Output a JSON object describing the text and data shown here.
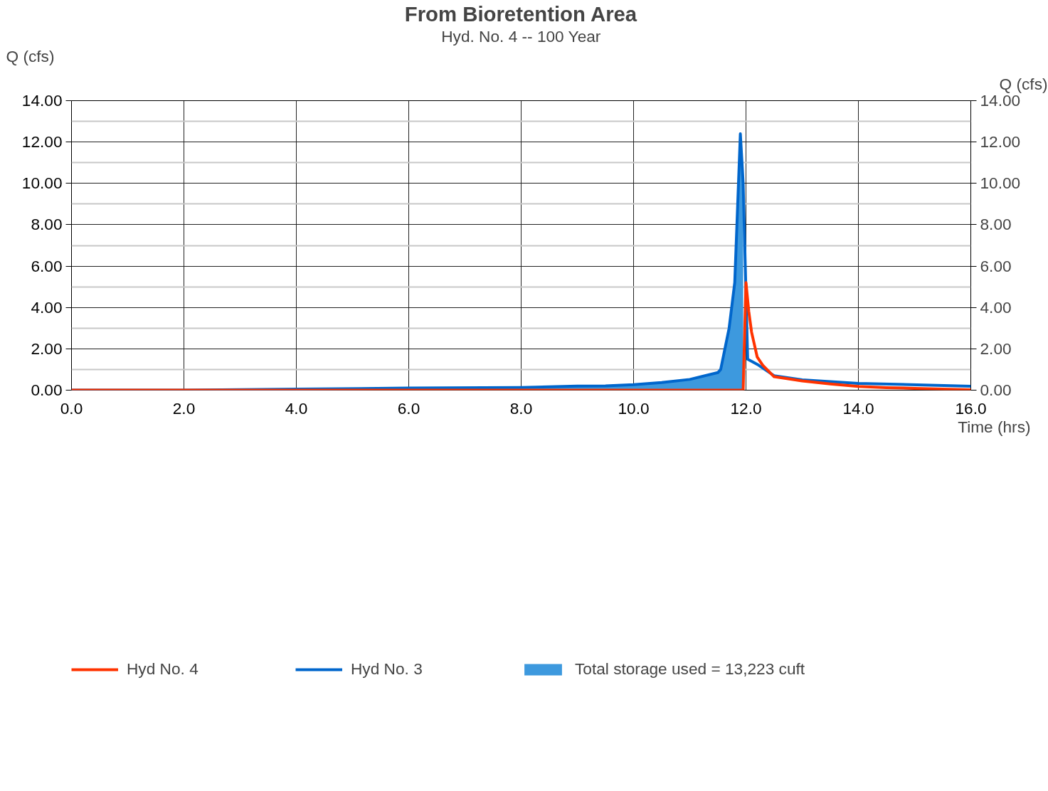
{
  "chart_data": {
    "type": "line",
    "title": "From Bioretention Area",
    "subtitle": "Hyd. No. 4 -- 100 Year",
    "ylabel": "Q (cfs)",
    "y2label": "Q (cfs)",
    "xlabel": "Time (hrs)",
    "series": [
      {
        "name": "Hyd No. 4",
        "color": "#ff3300",
        "x": [
          0,
          2,
          4,
          6,
          8,
          10,
          11,
          11.5,
          11.95,
          12.0,
          12.05,
          12.1,
          12.2,
          12.3,
          12.5,
          13.0,
          13.5,
          14.0,
          14.5,
          15.0,
          16.0
        ],
        "values": [
          0,
          0,
          0,
          0,
          0,
          0,
          0,
          0,
          0,
          5.2,
          3.8,
          2.8,
          1.6,
          1.2,
          0.65,
          0.45,
          0.3,
          0.18,
          0.12,
          0.09,
          0.02
        ]
      },
      {
        "name": "Hyd No. 3",
        "color": "#0066cc",
        "x": [
          0,
          2,
          4,
          6,
          8,
          9,
          9.5,
          10,
          10.5,
          11,
          11.5,
          11.55,
          11.7,
          11.8,
          11.9,
          11.95,
          12.03,
          12.2,
          12.5,
          13.0,
          14.0,
          16.0
        ],
        "values": [
          0,
          0,
          0.05,
          0.1,
          0.13,
          0.2,
          0.21,
          0.27,
          0.37,
          0.52,
          0.85,
          1.0,
          3.0,
          5.2,
          12.4,
          10.0,
          1.5,
          1.25,
          0.7,
          0.5,
          0.33,
          0.19
        ]
      },
      {
        "name": "Total storage used = 13,223 cuft",
        "type": "area",
        "color": "#3d99de",
        "x": [
          2,
          4,
          6,
          8,
          9,
          9.5,
          10,
          10.5,
          11,
          11.5,
          11.55,
          11.7,
          11.8,
          11.9,
          11.95
        ],
        "values": [
          0,
          0.05,
          0.1,
          0.13,
          0.2,
          0.21,
          0.27,
          0.37,
          0.52,
          0.85,
          1.0,
          3.0,
          5.2,
          12.4,
          10.0
        ]
      }
    ],
    "xlim": [
      0,
      16
    ],
    "xticks": [
      {
        "value": 0,
        "label": "0.0"
      },
      {
        "value": 2,
        "label": "2.0"
      },
      {
        "value": 4,
        "label": "4.0"
      },
      {
        "value": 6,
        "label": "6.0"
      },
      {
        "value": 8,
        "label": "8.0"
      },
      {
        "value": 10,
        "label": "10.0"
      },
      {
        "value": 12,
        "label": "12.0"
      },
      {
        "value": 14,
        "label": "14.0"
      },
      {
        "value": 16,
        "label": "16.0"
      }
    ],
    "ylim": [
      0,
      14
    ],
    "yticks": [
      {
        "value": 0,
        "label": "0.00"
      },
      {
        "value": 2,
        "label": "2.00"
      },
      {
        "value": 4,
        "label": "4.00"
      },
      {
        "value": 6,
        "label": "6.00"
      },
      {
        "value": 8,
        "label": "8.00"
      },
      {
        "value": 10,
        "label": "10.00"
      },
      {
        "value": 12,
        "label": "12.00"
      },
      {
        "value": 14,
        "label": "14.00"
      }
    ],
    "y2lim": [
      0,
      14
    ],
    "y2ticks": [
      {
        "value": 0,
        "label": "0.00"
      },
      {
        "value": 2,
        "label": "2.00"
      },
      {
        "value": 4,
        "label": "4.00"
      },
      {
        "value": 6,
        "label": "6.00"
      },
      {
        "value": 8,
        "label": "8.00"
      },
      {
        "value": 10,
        "label": "10.00"
      },
      {
        "value": 12,
        "label": "12.00"
      },
      {
        "value": 14,
        "label": "14.00"
      }
    ],
    "grid": true,
    "legend": "bottom",
    "marker": "none",
    "line_style": "solid"
  }
}
